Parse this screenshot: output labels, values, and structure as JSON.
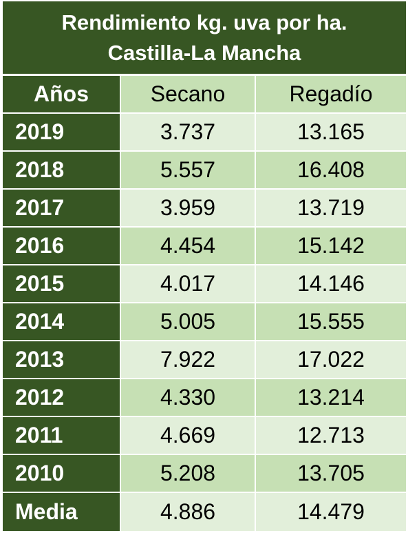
{
  "title": {
    "line1": "Rendimiento kg. uva por ha.",
    "line2": "Castilla-La Mancha"
  },
  "headers": {
    "year": "Años",
    "secano": "Secano",
    "regadio": "Regadío"
  },
  "rows": [
    {
      "year": "2019",
      "secano": "3.737",
      "regadio": "13.165"
    },
    {
      "year": "2018",
      "secano": "5.557",
      "regadio": "16.408"
    },
    {
      "year": "2017",
      "secano": "3.959",
      "regadio": "13.719"
    },
    {
      "year": "2016",
      "secano": "4.454",
      "regadio": "15.142"
    },
    {
      "year": "2015",
      "secano": "4.017",
      "regadio": "14.146"
    },
    {
      "year": "2014",
      "secano": "5.005",
      "regadio": "15.555"
    },
    {
      "year": "2013",
      "secano": "7.922",
      "regadio": "17.022"
    },
    {
      "year": "2012",
      "secano": "4.330",
      "regadio": "13.214"
    },
    {
      "year": "2011",
      "secano": "4.669",
      "regadio": "12.713"
    },
    {
      "year": "2010",
      "secano": "5.208",
      "regadio": "13.705"
    },
    {
      "year": "Media",
      "secano": "4.886",
      "regadio": "14.479"
    }
  ],
  "colors": {
    "dark_green": "#375623",
    "light_green": "#c6e0b4",
    "pale_green": "#e2efda"
  }
}
